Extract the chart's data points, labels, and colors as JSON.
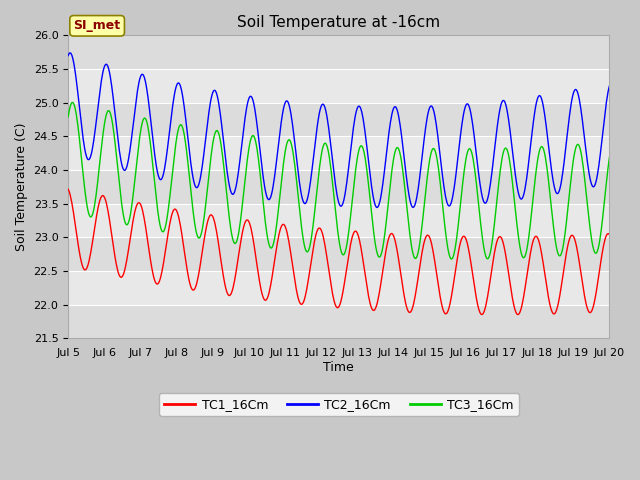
{
  "title": "Soil Temperature at -16cm",
  "xlabel": "Time",
  "ylabel": "Soil Temperature (C)",
  "ylim": [
    21.5,
    26.0
  ],
  "yticks": [
    21.5,
    22.0,
    22.5,
    23.0,
    23.5,
    24.0,
    24.5,
    25.0,
    25.5,
    26.0
  ],
  "legend_labels": [
    "TC1_16Cm",
    "TC2_16Cm",
    "TC3_16Cm"
  ],
  "line_colors": [
    "#ff0000",
    "#0000ff",
    "#00cc00"
  ],
  "fig_bg_color": "#c8c8c8",
  "plot_bg_color": "#dcdcdc",
  "band_color_light": "#e8e8e8",
  "band_color_dark": "#d0d0d0",
  "si_met_label": "SI_met",
  "si_met_bg": "#ffffaa",
  "si_met_border": "#8b0000",
  "grid_color": "#ffffff",
  "title_fontsize": 11,
  "axis_label_fontsize": 9,
  "tick_fontsize": 8,
  "legend_fontsize": 9,
  "n_points": 720,
  "x_start": 5.0,
  "x_end": 20.0,
  "xtick_positions": [
    5,
    6,
    7,
    8,
    9,
    10,
    11,
    12,
    13,
    14,
    15,
    16,
    17,
    18,
    19,
    20
  ],
  "xtick_labels": [
    "Jul 5",
    "Jul 6",
    "Jul 7",
    "Jul 8",
    "Jul 9",
    "Jul 10",
    "Jul 11",
    "Jul 12",
    "Jul 13",
    "Jul 14",
    "Jul 15",
    "Jul 16",
    "Jul 17",
    "Jul 18",
    "Jul 19",
    "Jul 20"
  ]
}
